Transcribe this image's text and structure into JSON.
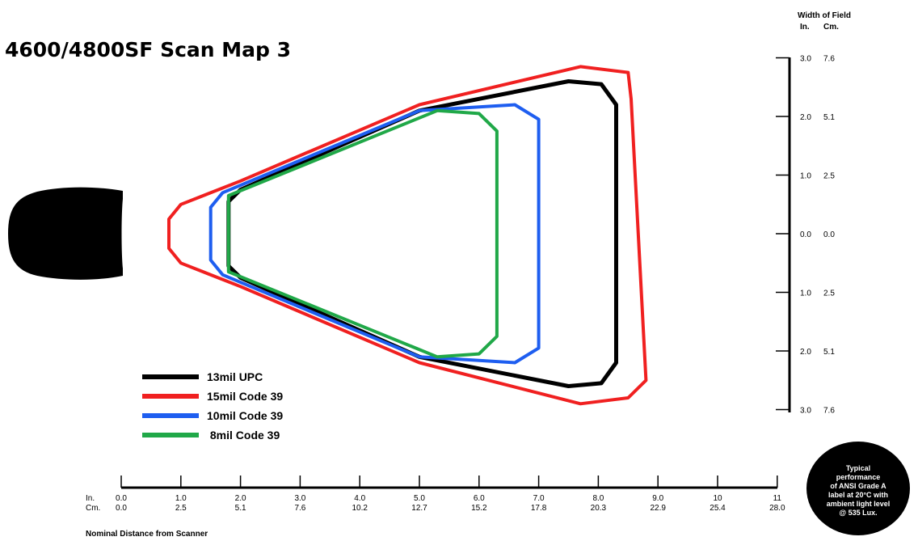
{
  "title": "4600/4800SF Scan Map 3",
  "right_axis": {
    "title": "Width of Field",
    "unit_in": "In.",
    "unit_cm": "Cm.",
    "ticks": [
      {
        "in": "3.0",
        "cm": "7.6"
      },
      {
        "in": "2.0",
        "cm": "5.1"
      },
      {
        "in": "1.0",
        "cm": "2.5"
      },
      {
        "in": "0.0",
        "cm": "0.0"
      },
      {
        "in": "1.0",
        "cm": "2.5"
      },
      {
        "in": "2.0",
        "cm": "5.1"
      },
      {
        "in": "3.0",
        "cm": "7.6"
      }
    ]
  },
  "bottom_axis": {
    "title": "Nominal Distance from Scanner",
    "unit_in": "In.",
    "unit_cm": "Cm.",
    "ticks_in": [
      "0.0",
      "1.0",
      "2.0",
      "3.0",
      "4.0",
      "5.0",
      "6.0",
      "7.0",
      "8.0",
      "9.0",
      "10",
      "11"
    ],
    "ticks_cm": [
      "0.0",
      "2.5",
      "5.1",
      "7.6",
      "10.2",
      "12.7",
      "15.2",
      "17.8",
      "20.3",
      "22.9",
      "25.4",
      "28.0"
    ]
  },
  "note": [
    "Typical",
    "performance",
    "of ANSI Grade A",
    "label at 20°C with",
    "ambient light level",
    "@ 535 Lux."
  ],
  "colors": {
    "black": "#000000",
    "red": "#f02020",
    "blue": "#1e5ef0",
    "green": "#20a848"
  },
  "chart_data": {
    "type": "line",
    "title": "4600/4800SF Scan Map 3",
    "xlabel": "Nominal Distance from Scanner",
    "ylabel": "Width of Field",
    "x_unit": "in",
    "y_unit": "in",
    "xlim": [
      0,
      11
    ],
    "ylim": [
      -3,
      3
    ],
    "series": [
      {
        "name": "13mil UPC",
        "color": "#000000",
        "width": 5,
        "points": [
          [
            1.8,
            0.0
          ],
          [
            1.8,
            0.55
          ],
          [
            2.0,
            0.75
          ],
          [
            5.0,
            2.1
          ],
          [
            7.5,
            2.6
          ],
          [
            8.05,
            2.55
          ],
          [
            8.3,
            2.2
          ],
          [
            8.3,
            -2.2
          ],
          [
            8.05,
            -2.55
          ],
          [
            7.5,
            -2.6
          ],
          [
            5.0,
            -2.1
          ],
          [
            2.0,
            -0.75
          ],
          [
            1.8,
            -0.55
          ]
        ]
      },
      {
        "name": "15mil Code 39",
        "color": "#f02020",
        "width": 4,
        "points": [
          [
            0.8,
            0.0
          ],
          [
            0.8,
            0.25
          ],
          [
            1.0,
            0.5
          ],
          [
            2.0,
            0.9
          ],
          [
            5.0,
            2.2
          ],
          [
            7.7,
            2.85
          ],
          [
            8.5,
            2.75
          ],
          [
            8.55,
            2.3
          ],
          [
            8.8,
            -2.5
          ],
          [
            8.5,
            -2.8
          ],
          [
            7.7,
            -2.9
          ],
          [
            5.0,
            -2.2
          ],
          [
            2.0,
            -0.9
          ],
          [
            1.0,
            -0.5
          ],
          [
            0.8,
            -0.25
          ]
        ]
      },
      {
        "name": "10mil Code 39",
        "color": "#1e5ef0",
        "width": 4,
        "points": [
          [
            1.5,
            0.0
          ],
          [
            1.5,
            0.45
          ],
          [
            1.7,
            0.7
          ],
          [
            5.0,
            2.1
          ],
          [
            6.6,
            2.2
          ],
          [
            7.0,
            1.95
          ],
          [
            7.0,
            -1.95
          ],
          [
            6.6,
            -2.2
          ],
          [
            5.0,
            -2.1
          ],
          [
            1.7,
            -0.7
          ],
          [
            1.5,
            -0.45
          ]
        ]
      },
      {
        "name": "8mil Code 39",
        "color": "#20a848",
        "width": 4,
        "points": [
          [
            1.8,
            0.65
          ],
          [
            5.3,
            2.1
          ],
          [
            6.0,
            2.05
          ],
          [
            6.3,
            1.75
          ],
          [
            6.3,
            -1.75
          ],
          [
            6.0,
            -2.05
          ],
          [
            5.3,
            -2.1
          ],
          [
            1.8,
            -0.65
          ]
        ]
      }
    ],
    "legend": [
      {
        "label": "13mil UPC",
        "color": "#000000"
      },
      {
        "label": "15mil Code 39",
        "color": "#f02020"
      },
      {
        "label": "10mil Code 39",
        "color": "#1e5ef0"
      },
      {
        "label": " 8mil Code 39",
        "color": "#20a848"
      }
    ],
    "legend_position": "bottom-left"
  }
}
